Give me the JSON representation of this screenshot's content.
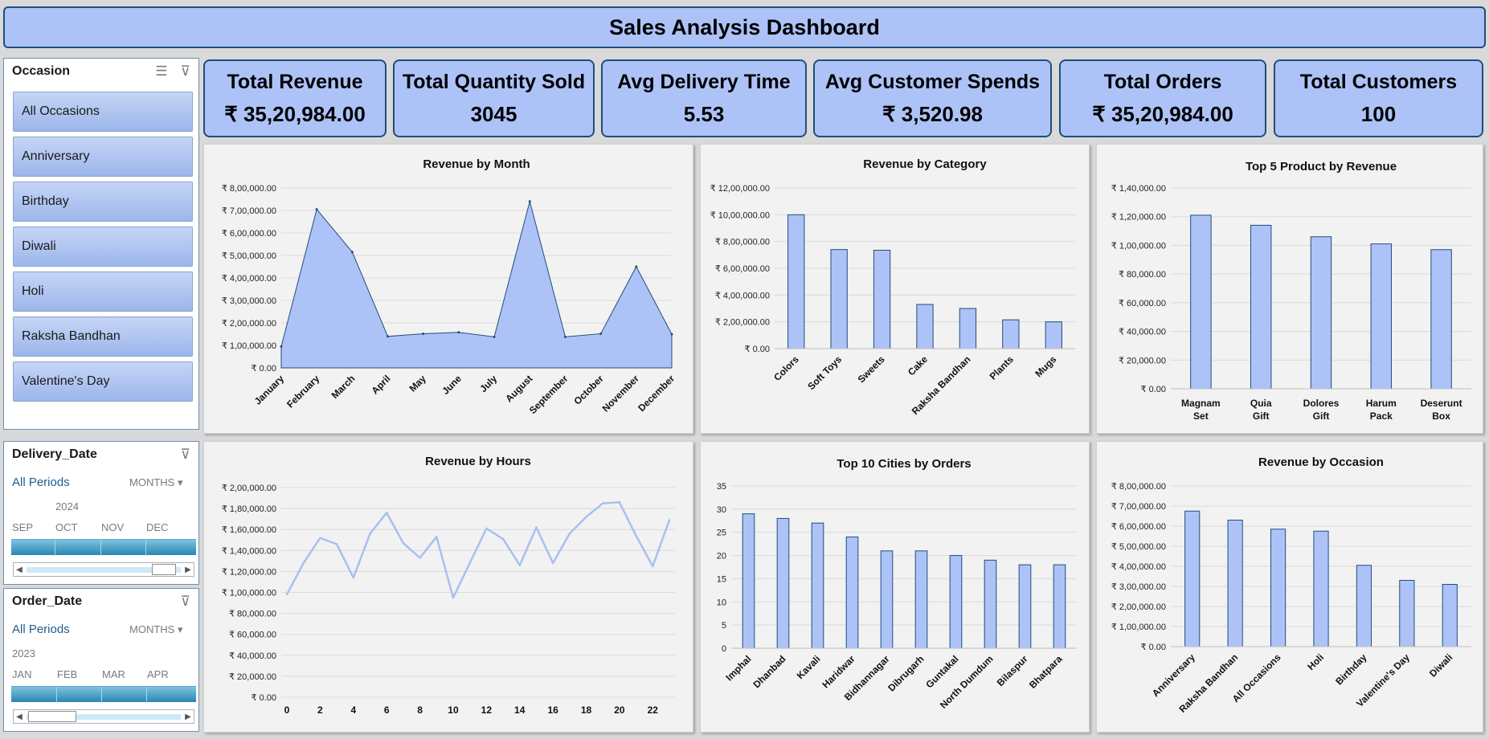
{
  "dashboard": {
    "title": "Sales Analysis Dashboard"
  },
  "kpis": [
    {
      "label": "Total Revenue",
      "value": "₹ 35,20,984.00"
    },
    {
      "label": "Total Quantity Sold",
      "value": "3045"
    },
    {
      "label": "Avg Delivery Time",
      "value": "5.53"
    },
    {
      "label": "Avg Customer Spends",
      "value": "₹ 3,520.98"
    },
    {
      "label": "Total Orders",
      "value": "₹ 35,20,984.00"
    },
    {
      "label": "Total Customers",
      "value": "100"
    }
  ],
  "occasion_slicer": {
    "title": "Occasion",
    "items": [
      "All Occasions",
      "Anniversary",
      "Birthday",
      "Diwali",
      "Holi",
      "Raksha Bandhan",
      "Valentine's Day"
    ]
  },
  "delivery_timeline": {
    "title": "Delivery_Date",
    "periods": "All Periods",
    "level": "MONTHS",
    "year": "2024",
    "months": [
      "SEP",
      "OCT",
      "NOV",
      "DEC"
    ]
  },
  "order_timeline": {
    "title": "Order_Date",
    "periods": "All Periods",
    "level": "MONTHS",
    "year": "2023",
    "months": [
      "JAN",
      "FEB",
      "MAR",
      "APR"
    ]
  },
  "colors": {
    "accent": "#adc3f8",
    "bar": "#adc3f8",
    "border": "#1f4e79",
    "line": "#a9bff2"
  },
  "chart_data": [
    {
      "id": "revenue-by-month",
      "type": "area",
      "title": "Revenue by Month",
      "categories": [
        "January",
        "February",
        "March",
        "April",
        "May",
        "June",
        "July",
        "August",
        "September",
        "October",
        "November",
        "December"
      ],
      "values": [
        95000,
        705000,
        515000,
        140000,
        152000,
        158000,
        138000,
        740000,
        138000,
        152000,
        450000,
        150000
      ],
      "ylim": [
        0,
        800000
      ],
      "yticks": [
        0,
        100000,
        200000,
        300000,
        400000,
        500000,
        600000,
        700000,
        800000
      ],
      "ytick_labels": [
        "₹ 0.00",
        "₹ 1,00,000.00",
        "₹ 2,00,000.00",
        "₹ 3,00,000.00",
        "₹ 4,00,000.00",
        "₹ 5,00,000.00",
        "₹ 6,00,000.00",
        "₹ 7,00,000.00",
        "₹ 8,00,000.00"
      ]
    },
    {
      "id": "revenue-by-category",
      "type": "bar",
      "title": "Revenue by Category",
      "categories": [
        "Colors",
        "Soft Toys",
        "Sweets",
        "Cake",
        "Raksha Bandhan",
        "Plants",
        "Mugs"
      ],
      "values": [
        1000000,
        740000,
        735000,
        330000,
        300000,
        215000,
        200000
      ],
      "ylim": [
        0,
        1200000
      ],
      "yticks": [
        0,
        200000,
        400000,
        600000,
        800000,
        1000000,
        1200000
      ],
      "ytick_labels": [
        "₹ 0.00",
        "₹ 2,00,000.00",
        "₹ 4,00,000.00",
        "₹ 6,00,000.00",
        "₹ 8,00,000.00",
        "₹ 10,00,000.00",
        "₹ 12,00,000.00"
      ]
    },
    {
      "id": "top-5-products",
      "type": "bar",
      "title": "Top 5 Product by Revenue",
      "categories": [
        "Magnam Set",
        "Quia Gift",
        "Dolores Gift",
        "Harum Pack",
        "Deserunt Box"
      ],
      "values": [
        121000,
        114000,
        106000,
        101000,
        97000
      ],
      "ylim": [
        0,
        140000
      ],
      "yticks": [
        0,
        20000,
        40000,
        60000,
        80000,
        100000,
        120000,
        140000
      ],
      "ytick_labels": [
        "₹ 0.00",
        "₹ 20,000.00",
        "₹ 40,000.00",
        "₹ 60,000.00",
        "₹ 80,000.00",
        "₹ 1,00,000.00",
        "₹ 1,20,000.00",
        "₹ 1,40,000.00"
      ]
    },
    {
      "id": "revenue-by-hours",
      "type": "line",
      "title": "Revenue by Hours",
      "x": [
        0,
        1,
        2,
        3,
        4,
        5,
        6,
        7,
        8,
        9,
        10,
        11,
        12,
        13,
        14,
        15,
        16,
        17,
        18,
        19,
        20,
        21,
        22,
        23
      ],
      "values": [
        98000,
        128000,
        152000,
        146000,
        114000,
        156000,
        176000,
        147000,
        133000,
        153000,
        95000,
        128000,
        161000,
        151000,
        126000,
        162000,
        128000,
        156000,
        172000,
        185000,
        186000,
        154000,
        125000,
        169000
      ],
      "xticks": [
        0,
        2,
        4,
        6,
        8,
        10,
        12,
        14,
        16,
        18,
        20,
        22
      ],
      "ylim": [
        0,
        200000
      ],
      "yticks": [
        0,
        20000,
        40000,
        60000,
        80000,
        100000,
        120000,
        140000,
        160000,
        180000,
        200000
      ],
      "ytick_labels": [
        "₹ 0.00",
        "₹ 20,000.00",
        "₹ 40,000.00",
        "₹ 60,000.00",
        "₹ 80,000.00",
        "₹ 1,00,000.00",
        "₹ 1,20,000.00",
        "₹ 1,40,000.00",
        "₹ 1,60,000.00",
        "₹ 1,80,000.00",
        "₹ 2,00,000.00"
      ]
    },
    {
      "id": "top-10-cities",
      "type": "bar",
      "title": "Top 10 Cities by Orders",
      "categories": [
        "Imphal",
        "Dhanbad",
        "Kavali",
        "Haridwar",
        "Bidhannagar",
        "Dibrugarh",
        "Guntakal",
        "North Dumdum",
        "Bilaspur",
        "Bhatpara"
      ],
      "values": [
        29,
        28,
        27,
        24,
        21,
        21,
        20,
        19,
        18,
        18
      ],
      "ylim": [
        0,
        35
      ],
      "yticks": [
        0,
        5,
        10,
        15,
        20,
        25,
        30,
        35
      ],
      "ytick_labels": [
        "0",
        "5",
        "10",
        "15",
        "20",
        "25",
        "30",
        "35"
      ]
    },
    {
      "id": "revenue-by-occasion",
      "type": "bar",
      "title": "Revenue by Occasion",
      "categories": [
        "Anniversary",
        "Raksha Bandhan",
        "All Occasions",
        "Holi",
        "Birthday",
        "Valentine's Day",
        "Diwali"
      ],
      "values": [
        675000,
        630000,
        585000,
        575000,
        405000,
        330000,
        310000
      ],
      "ylim": [
        0,
        800000
      ],
      "yticks": [
        0,
        100000,
        200000,
        300000,
        400000,
        500000,
        600000,
        700000,
        800000
      ],
      "ytick_labels": [
        "₹ 0.00",
        "₹ 1,00,000.00",
        "₹ 2,00,000.00",
        "₹ 3,00,000.00",
        "₹ 4,00,000.00",
        "₹ 5,00,000.00",
        "₹ 6,00,000.00",
        "₹ 7,00,000.00",
        "₹ 8,00,000.00"
      ]
    }
  ]
}
